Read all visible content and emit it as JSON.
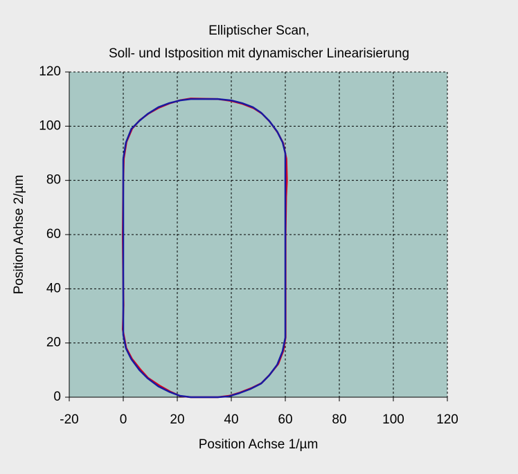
{
  "chart_data": {
    "type": "line",
    "title": "Elliptischer Scan,",
    "subtitle": "Soll- und Istposition mit dynamischer Linearisierung",
    "xlabel": "Position Achse 1/µm",
    "ylabel": "Position Achse 2/µm",
    "xlim": [
      -20,
      120
    ],
    "ylim": [
      0,
      120
    ],
    "xticks": [
      -20,
      0,
      20,
      40,
      60,
      80,
      100,
      120
    ],
    "yticks": [
      0,
      20,
      40,
      60,
      80,
      100,
      120
    ],
    "grid": true,
    "series": [
      {
        "color": "#e0001a",
        "x": [
          0.2,
          1.2,
          3.3,
          6.2,
          9.3,
          13.2,
          17.1,
          21.2,
          25,
          30,
          35,
          40,
          44.2,
          48.3,
          51.4,
          54.3,
          57.2,
          59.2,
          60.4,
          60.6,
          60.3,
          60.1,
          60.1,
          59.3,
          57.4,
          54.3,
          51.2,
          47.3,
          43.2,
          39.2,
          35,
          30,
          25,
          21.1,
          17.3,
          13.4,
          9.2,
          6.3,
          3.2,
          1.1,
          -0.2,
          0.1,
          0,
          -0.2,
          0,
          0.2
        ],
        "values": [
          88,
          94.2,
          99.1,
          102.3,
          104.6,
          106.8,
          108.4,
          109.6,
          110.2,
          110.1,
          110,
          109.3,
          108.2,
          106.6,
          104.6,
          101.6,
          97.6,
          93.8,
          88,
          80,
          74,
          60,
          22,
          17.2,
          12.3,
          8.4,
          5.2,
          3.3,
          1.7,
          0.5,
          0,
          0,
          0,
          0.4,
          2.1,
          4.3,
          7.1,
          10.3,
          14.2,
          18.2,
          25,
          34,
          40,
          60,
          80,
          88
        ]
      },
      {
        "color": "#1a1aa0",
        "x": [
          0,
          1,
          3,
          6,
          9,
          13,
          17,
          21,
          25,
          30,
          35,
          40,
          44,
          48,
          51,
          54,
          57,
          59,
          60,
          60,
          60,
          60,
          60,
          59,
          57,
          54,
          51,
          47,
          43,
          39,
          35,
          30,
          25,
          21,
          17,
          13,
          9,
          6,
          3,
          1,
          0,
          0,
          0,
          0,
          0
        ],
        "values": [
          88,
          94,
          99,
          102,
          104.5,
          107,
          108.5,
          109.5,
          110,
          110,
          110,
          109.5,
          108.5,
          107,
          105,
          102,
          98,
          94,
          90,
          80,
          60,
          40,
          22,
          17,
          12,
          8,
          5,
          3,
          1.5,
          0.3,
          0,
          0,
          0,
          0.5,
          2,
          4,
          7,
          10,
          14,
          18,
          23,
          40,
          60,
          80,
          88
        ]
      }
    ]
  }
}
